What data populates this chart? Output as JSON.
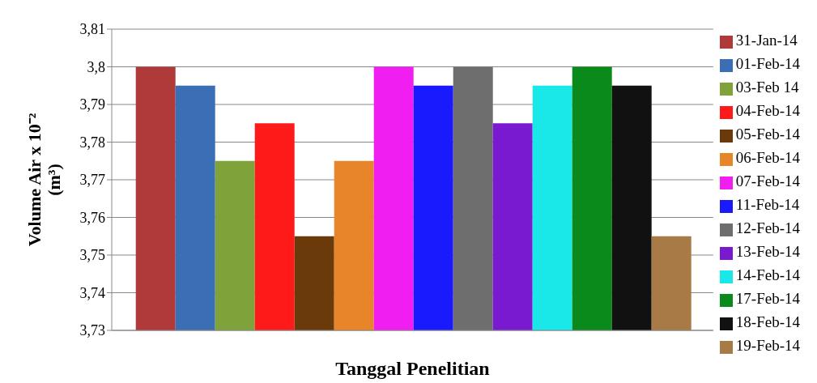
{
  "chart_data": {
    "type": "bar",
    "xlabel": "Tanggal Penelitian",
    "ylabel": "Volume Air x 10⁻² (m³)",
    "categories": [
      null
    ],
    "series": [
      {
        "name": "31-Jan-14",
        "color": "#b03a3a",
        "values": [
          3.8
        ]
      },
      {
        "name": "01-Feb-14",
        "color": "#3a6fb5",
        "values": [
          3.795
        ]
      },
      {
        "name": "03-Feb 14",
        "color": "#7fa33a",
        "values": [
          3.775
        ]
      },
      {
        "name": "04-Feb-14",
        "color": "#ff1a1a",
        "values": [
          3.785
        ]
      },
      {
        "name": "05-Feb-14",
        "color": "#6b3a0a",
        "values": [
          3.755
        ]
      },
      {
        "name": "06-Feb-14",
        "color": "#e8842a",
        "values": [
          3.775
        ]
      },
      {
        "name": "07-Feb-14",
        "color": "#f01ef0",
        "values": [
          3.8
        ]
      },
      {
        "name": "11-Feb-14",
        "color": "#1a1aff",
        "values": [
          3.795
        ]
      },
      {
        "name": "12-Feb-14",
        "color": "#6e6e6e",
        "values": [
          3.8
        ]
      },
      {
        "name": "13-Feb-14",
        "color": "#7a1ad0",
        "values": [
          3.785
        ]
      },
      {
        "name": "14-Feb-14",
        "color": "#1ae8e8",
        "values": [
          3.795
        ]
      },
      {
        "name": "17-Feb-14",
        "color": "#0a8a1a",
        "values": [
          3.8
        ]
      },
      {
        "name": "18-Feb-14",
        "color": "#111111",
        "values": [
          3.795
        ]
      },
      {
        "name": "19-Feb-14",
        "color": "#a87a45",
        "values": [
          3.755
        ]
      }
    ],
    "ylim": [
      3.73,
      3.81
    ],
    "yticks": [
      {
        "value": 3.73,
        "label": "3,73"
      },
      {
        "value": 3.74,
        "label": "3,74"
      },
      {
        "value": 3.75,
        "label": "3,75"
      },
      {
        "value": 3.76,
        "label": "3,76"
      },
      {
        "value": 3.77,
        "label": "3,77"
      },
      {
        "value": 3.78,
        "label": "3,78"
      },
      {
        "value": 3.79,
        "label": "3,79"
      },
      {
        "value": 3.8,
        "label": "3,8"
      },
      {
        "value": 3.81,
        "label": "3,81"
      }
    ],
    "grid": "y",
    "legend": "right"
  }
}
